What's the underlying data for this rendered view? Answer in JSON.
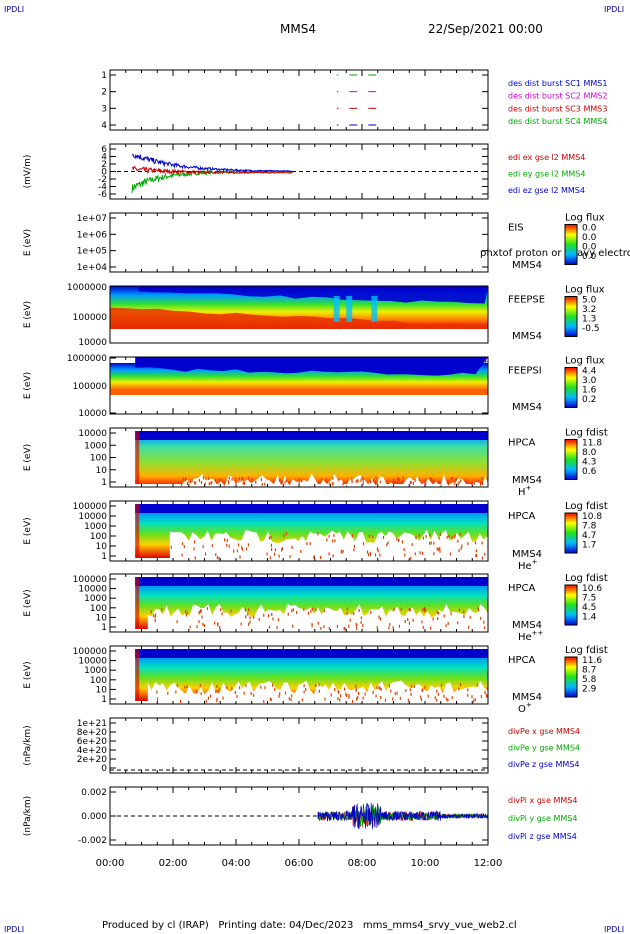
{
  "header": {
    "corner_label": "IPDLI",
    "spacecraft": "MMS4",
    "datetime": "22/Sep/2021 00:00"
  },
  "footer": "Produced by cl (IRAP)   Printing date: 04/Dec/2023   mms_mms4_srvy_vue_web2.cl",
  "time_axis": [
    "00:00",
    "02:00",
    "04:00",
    "06:00",
    "08:00",
    "10:00",
    "12:00"
  ],
  "chart_data": [
    {
      "type": "line",
      "id": "burst",
      "ylim": [
        0.5,
        4.5
      ],
      "yticks": [
        "1",
        "2",
        "3",
        "4"
      ],
      "legend": [
        {
          "name": "des dist burst SC1 MMS1",
          "color": "#0000cc"
        },
        {
          "name": "des dist burst SC2 MMS2",
          "color": "#cc00cc"
        },
        {
          "name": "des dist burst SC3 MMS3",
          "color": "#cc0000"
        },
        {
          "name": "des dist burst SC4 MMS4",
          "color": "#00aa00"
        }
      ]
    },
    {
      "type": "line",
      "id": "edi",
      "ylabel": "(mV/m)",
      "ylim": [
        -7,
        7
      ],
      "yticks": [
        "6",
        "4",
        "2",
        "0",
        "-2",
        "-4",
        "-6"
      ],
      "legend": [
        {
          "name": "edi ex gse l2 MMS4",
          "color": "#cc0000"
        },
        {
          "name": "edi ey gse l2 MMS4",
          "color": "#00aa00"
        },
        {
          "name": "edi ez gse l2 MMS4",
          "color": "#0000cc"
        }
      ]
    },
    {
      "type": "heatmap",
      "id": "eis",
      "ylabel": "E (eV)",
      "yticks": [
        "1e+07",
        "1e+06",
        "1e+05",
        "1e+04"
      ],
      "label_lines": [
        "EIS",
        "MMS4"
      ],
      "overlay_text": "phxtof proton or heavy electron to",
      "colorbar": {
        "title": "Log flux",
        "ticks": [
          "0.0",
          "0.0",
          "0.0",
          "0.0"
        ]
      }
    },
    {
      "type": "heatmap",
      "id": "feepse",
      "ylabel": "E (eV)",
      "yticks": [
        "1000000",
        "100000",
        "10000"
      ],
      "label_lines": [
        "FEEPSE",
        "MMS4"
      ],
      "colorbar": {
        "title": "Log flux",
        "ticks": [
          "5.0",
          "3.2",
          "1.3",
          "-0.5"
        ]
      }
    },
    {
      "type": "heatmap",
      "id": "feepsi",
      "ylabel": "E (eV)",
      "yticks": [
        "1000000",
        "100000",
        "10000"
      ],
      "label_lines": [
        "FEEPSI",
        "MMS4"
      ],
      "colorbar": {
        "title": "Log flux",
        "ticks": [
          "4.4",
          "3.0",
          "1.6",
          "0.2"
        ]
      }
    },
    {
      "type": "heatmap",
      "id": "hpca-h",
      "ylabel": "E (eV)",
      "yticks": [
        "10000",
        "1000",
        "100",
        "10",
        "1"
      ],
      "label_lines": [
        "HPCA",
        "MMS4"
      ],
      "species": "H",
      "charge": "+",
      "colorbar": {
        "title": "Log fdist",
        "ticks": [
          "11.8",
          "8.0",
          "4.3",
          "0.6"
        ]
      }
    },
    {
      "type": "heatmap",
      "id": "hpca-he",
      "ylabel": "E (eV)",
      "yticks": [
        "100000",
        "10000",
        "1000",
        "100",
        "10",
        "1"
      ],
      "label_lines": [
        "HPCA",
        "MMS4"
      ],
      "species": "He",
      "charge": "+",
      "colorbar": {
        "title": "Log fdist",
        "ticks": [
          "10.8",
          "7.8",
          "4.7",
          "1.7"
        ]
      }
    },
    {
      "type": "heatmap",
      "id": "hpca-hepp",
      "ylabel": "E (eV)",
      "yticks": [
        "100000",
        "10000",
        "1000",
        "100",
        "10",
        "1"
      ],
      "label_lines": [
        "HPCA",
        "MMS4"
      ],
      "species": "He",
      "charge": "++",
      "colorbar": {
        "title": "Log fdist",
        "ticks": [
          "10.6",
          "7.5",
          "4.5",
          "1.4"
        ]
      }
    },
    {
      "type": "heatmap",
      "id": "hpca-o",
      "ylabel": "E (eV)",
      "yticks": [
        "100000",
        "10000",
        "1000",
        "100",
        "10",
        "1"
      ],
      "label_lines": [
        "HPCA",
        "MMS4"
      ],
      "species": "O",
      "charge": "+",
      "colorbar": {
        "title": "Log fdist",
        "ticks": [
          "11.6",
          "8.7",
          "5.8",
          "2.9"
        ]
      }
    },
    {
      "type": "line",
      "id": "divpe",
      "ylabel": "(nPa/km)",
      "ylim": [
        -1e+20,
        1.1e+21
      ],
      "yticks": [
        "1e+21",
        "8e+20",
        "6e+20",
        "4e+20",
        "2e+20",
        "0"
      ],
      "legend": [
        {
          "name": "divPe x gse MMS4",
          "color": "#cc0000"
        },
        {
          "name": "divPe y gse MMS4",
          "color": "#00aa00"
        },
        {
          "name": "divPe z gse MMS4",
          "color": "#0000cc"
        }
      ]
    },
    {
      "type": "line",
      "id": "divpi",
      "ylabel": "(nPa/km)",
      "ylim": [
        -0.003,
        0.003
      ],
      "yticks": [
        "0.002",
        "0.000",
        "-0.002"
      ],
      "legend": [
        {
          "name": "divPi x gse MMS4",
          "color": "#cc0000"
        },
        {
          "name": "divPi y gse MMS4",
          "color": "#00aa00"
        },
        {
          "name": "divPi z gse MMS4",
          "color": "#0000cc"
        }
      ]
    }
  ]
}
